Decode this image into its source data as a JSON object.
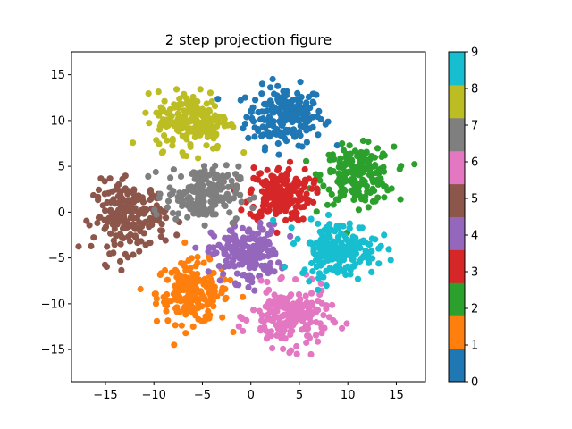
{
  "chart_data": {
    "type": "scatter",
    "title": "2 step projection figure",
    "xlabel": "",
    "ylabel": "",
    "xlim": [
      -18.5,
      18
    ],
    "ylim": [
      -18.5,
      17.5
    ],
    "x_ticks": [
      -15,
      -10,
      -5,
      0,
      5,
      10,
      15
    ],
    "y_ticks": [
      -15,
      -10,
      -5,
      0,
      5,
      10,
      15
    ],
    "grid": false,
    "colorbar": {
      "range": [
        0,
        9
      ],
      "ticks": [
        0,
        1,
        2,
        3,
        4,
        5,
        6,
        7,
        8,
        9
      ],
      "colormap": "tab10"
    },
    "clusters": [
      {
        "label": 0,
        "color": "#1f77b4",
        "center": [
          3.5,
          10.5
        ],
        "spread_x": 3.2,
        "spread_y": 2.6,
        "approx_points": 200
      },
      {
        "label": 1,
        "color": "#ff7f0e",
        "center": [
          -6.0,
          -8.8
        ],
        "spread_x": 3.0,
        "spread_y": 2.7,
        "approx_points": 200
      },
      {
        "label": 2,
        "color": "#2ca02c",
        "center": [
          11.0,
          4.0
        ],
        "spread_x": 3.0,
        "spread_y": 2.5,
        "approx_points": 200
      },
      {
        "label": 3,
        "color": "#d62728",
        "center": [
          3.0,
          2.0
        ],
        "spread_x": 2.6,
        "spread_y": 2.4,
        "approx_points": 200
      },
      {
        "label": 4,
        "color": "#9467bd",
        "center": [
          -0.5,
          -4.5
        ],
        "spread_x": 2.8,
        "spread_y": 2.5,
        "approx_points": 200
      },
      {
        "label": 5,
        "color": "#8c564b",
        "center": [
          -12.5,
          -0.5
        ],
        "spread_x": 3.0,
        "spread_y": 3.0,
        "approx_points": 200
      },
      {
        "label": 6,
        "color": "#e377c2",
        "center": [
          4.0,
          -11.5
        ],
        "spread_x": 3.2,
        "spread_y": 2.6,
        "approx_points": 200
      },
      {
        "label": 7,
        "color": "#7f7f7f",
        "center": [
          -5.0,
          2.0
        ],
        "spread_x": 3.0,
        "spread_y": 2.4,
        "approx_points": 200
      },
      {
        "label": 8,
        "color": "#bcbd22",
        "center": [
          -6.0,
          10.0
        ],
        "spread_x": 3.0,
        "spread_y": 2.6,
        "approx_points": 200
      },
      {
        "label": 9,
        "color": "#17becf",
        "center": [
          9.0,
          -4.0
        ],
        "spread_x": 3.2,
        "spread_y": 2.4,
        "approx_points": 200
      }
    ]
  }
}
